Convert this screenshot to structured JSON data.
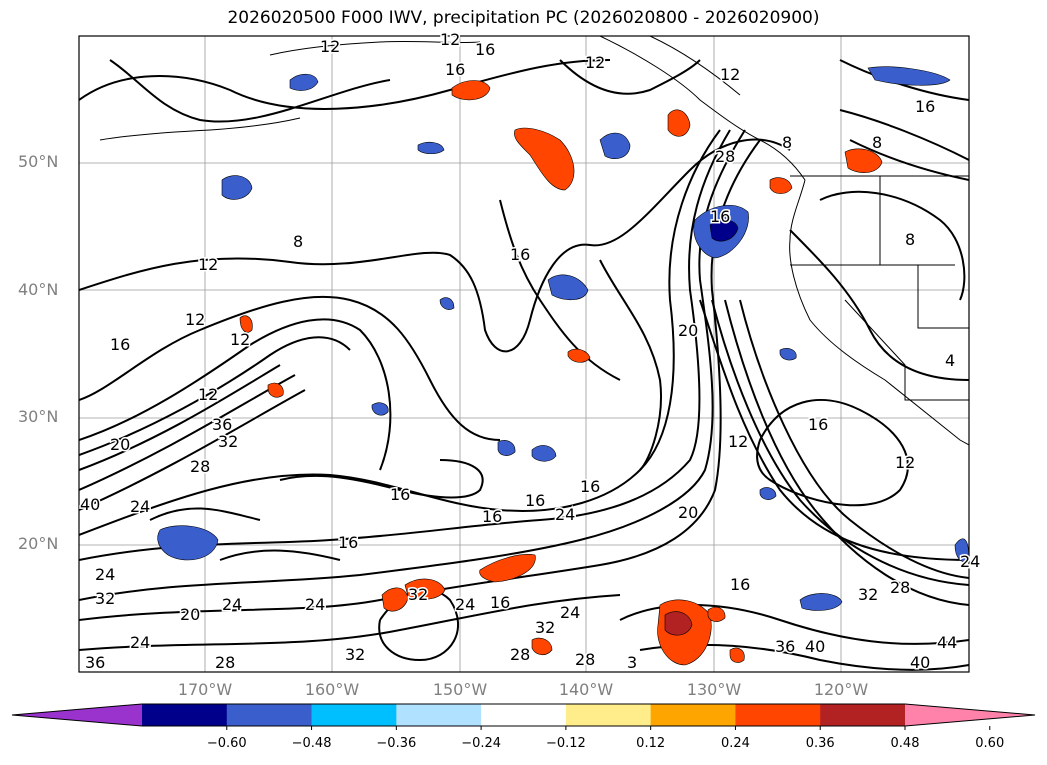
{
  "title": "2026020500 F000 IWV, precipitation PC (2026020800 - 2026020900)",
  "lat_labels": [
    "50°N",
    "40°N",
    "30°N",
    "20°N"
  ],
  "lon_labels": [
    "170°W",
    "160°W",
    "150°W",
    "140°W",
    "130°W",
    "120°W"
  ],
  "colorbar": {
    "colors": [
      "#9a32cd",
      "#00008b",
      "#3a5fcd",
      "#00bfff",
      "#b0e2ff",
      "#ffffff",
      "#ffec8b",
      "#ffa500",
      "#ff4500",
      "#b22222",
      "#ff82ab"
    ],
    "tick_labels": [
      "−0.60",
      "−0.48",
      "−0.36",
      "−0.24",
      "−0.12",
      "0.12",
      "0.24",
      "0.36",
      "0.48",
      "0.60"
    ]
  },
  "contour_labels": [
    "12",
    "16",
    "12",
    "16",
    "16",
    "8",
    "12",
    "12",
    "28",
    "16",
    "8",
    "12",
    "12",
    "16",
    "12",
    "12",
    "20",
    "16",
    "20",
    "36",
    "32",
    "28",
    "24",
    "40",
    "20",
    "16",
    "16",
    "16",
    "24",
    "16",
    "8",
    "12",
    "16",
    "12",
    "20",
    "16",
    "24",
    "16",
    "16",
    "24",
    "24",
    "32",
    "24",
    "28",
    "32",
    "28",
    "24",
    "32",
    "36",
    "32",
    "24",
    "3",
    "28",
    "32",
    "36",
    "40",
    "28",
    "24",
    "44",
    "40",
    "8",
    "4"
  ]
}
